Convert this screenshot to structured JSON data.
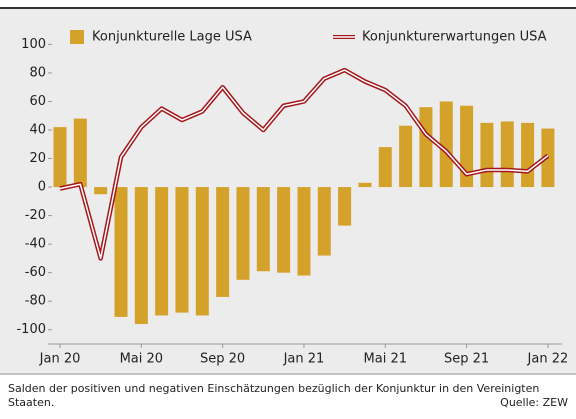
{
  "chart_data": {
    "type": "bar-line",
    "categories": [
      "Jan 20",
      null,
      null,
      null,
      "Mai 20",
      null,
      null,
      null,
      "Sep 20",
      null,
      null,
      null,
      "Jan 21",
      null,
      null,
      null,
      "Mai 21",
      null,
      null,
      null,
      "Sep 21",
      null,
      null,
      null,
      "Jan 22"
    ],
    "series": [
      {
        "name": "Konjunkturelle Lage USA",
        "type": "bar",
        "color": "#d4a12a",
        "values": [
          42,
          48,
          -5,
          -91,
          -96,
          -90,
          -88,
          -90,
          -77,
          -65,
          -59,
          -60,
          -62,
          -48,
          -27,
          3,
          28,
          43,
          56,
          60,
          57,
          45,
          46,
          45,
          41
        ]
      },
      {
        "name": "Konjunkturerwartungen USA",
        "type": "line",
        "color": "#a3161b",
        "values": [
          -1,
          2,
          -50,
          21,
          42,
          55,
          47,
          53,
          70,
          52,
          40,
          57,
          60,
          76,
          82,
          74,
          68,
          57,
          37,
          25,
          9,
          12,
          12,
          11,
          22
        ]
      }
    ],
    "ylim": [
      -110,
      115
    ],
    "yticks": [
      -100,
      -80,
      -60,
      -40,
      -20,
      0,
      20,
      40,
      60,
      80,
      100
    ],
    "note": "Salden der positiven und negativen Einschätzungen bezüglich der Konjunktur in den Vereinigten Staaten.",
    "source": "Quelle: ZEW"
  }
}
